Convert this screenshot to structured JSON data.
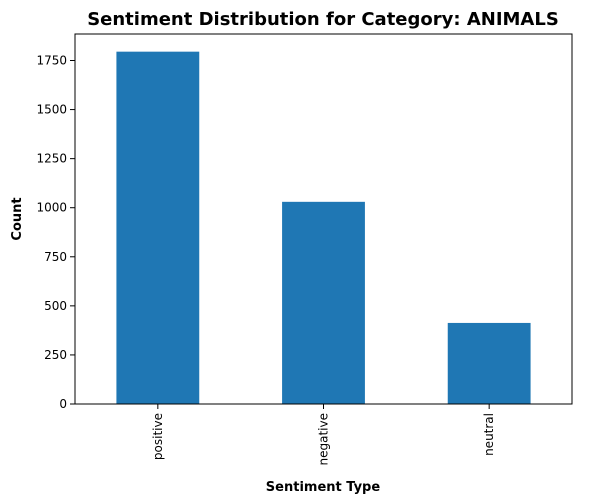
{
  "chart_data": {
    "type": "bar",
    "title": "Sentiment Distribution for Category: ANIMALS",
    "xlabel": "Sentiment Type",
    "ylabel": "Count",
    "categories": [
      "positive",
      "negative",
      "neutral"
    ],
    "values": [
      1795,
      1030,
      413
    ],
    "yticks": [
      0,
      250,
      500,
      750,
      1000,
      1250,
      1500,
      1750
    ],
    "ylim": [
      0,
      1885
    ],
    "grid": false,
    "legend": "none",
    "bar_color": "#1f77b4",
    "x_tick_rotation": "vertical"
  }
}
